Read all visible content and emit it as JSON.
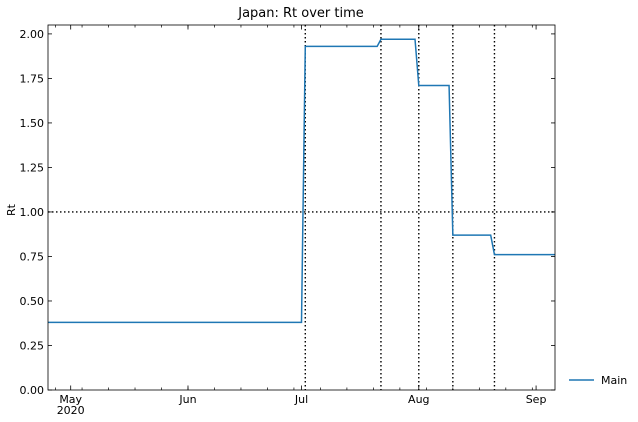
{
  "chart_data": {
    "type": "line",
    "title": "Japan: Rt over time",
    "xlabel": "",
    "ylabel": "Rt",
    "x_axis": {
      "type": "date",
      "range": [
        "2020-04-25",
        "2020-09-06"
      ],
      "major_ticks": [
        {
          "date": "2020-05-01",
          "label": "May",
          "sublabel": "2020"
        },
        {
          "date": "2020-06-01",
          "label": "Jun"
        },
        {
          "date": "2020-07-01",
          "label": "Jul"
        },
        {
          "date": "2020-08-01",
          "label": "Aug"
        },
        {
          "date": "2020-09-01",
          "label": "Sep"
        }
      ]
    },
    "ylim": [
      0,
      2.05
    ],
    "yticks": [
      "0.00",
      "0.25",
      "0.50",
      "0.75",
      "1.00",
      "1.25",
      "1.50",
      "1.75",
      "2.00"
    ],
    "reference_line": {
      "y": 1.0,
      "style": "dotted"
    },
    "change_points": [
      "2020-07-02",
      "2020-07-22",
      "2020-08-01",
      "2020-08-10",
      "2020-08-21"
    ],
    "series": [
      {
        "name": "Main",
        "color": "#1f77b4",
        "points": [
          {
            "x": "2020-04-25",
            "y": 0.38
          },
          {
            "x": "2020-07-01",
            "y": 0.38
          },
          {
            "x": "2020-07-02",
            "y": 1.93
          },
          {
            "x": "2020-07-21",
            "y": 1.93
          },
          {
            "x": "2020-07-22",
            "y": 1.97
          },
          {
            "x": "2020-07-31",
            "y": 1.97
          },
          {
            "x": "2020-08-01",
            "y": 1.71
          },
          {
            "x": "2020-08-09",
            "y": 1.71
          },
          {
            "x": "2020-08-10",
            "y": 0.87
          },
          {
            "x": "2020-08-20",
            "y": 0.87
          },
          {
            "x": "2020-08-21",
            "y": 0.76
          },
          {
            "x": "2020-09-06",
            "y": 0.76
          }
        ]
      }
    ],
    "legend": {
      "placement": "outside-bottom-right"
    }
  }
}
